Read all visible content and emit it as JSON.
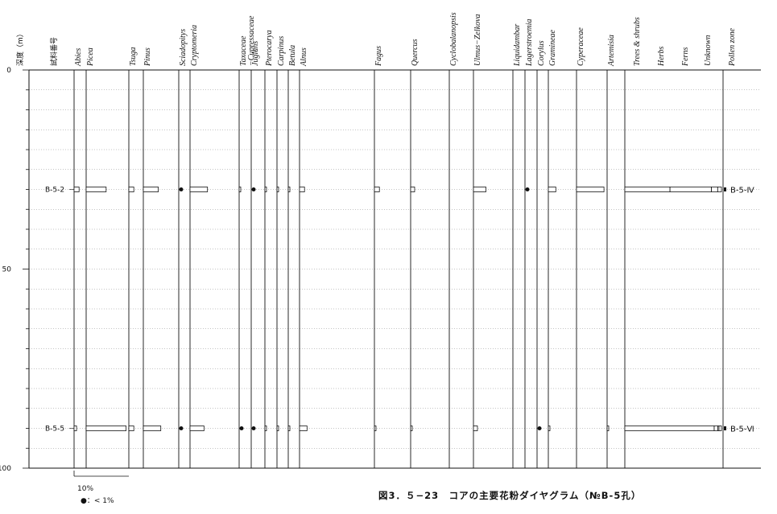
{
  "header": {
    "depth_label": "深度（m）",
    "sample_label": "試料番号"
  },
  "caption": "図3．５−23　コアの主要花粉ダイヤグラム（№B-5孔）",
  "legend": {
    "scale_label": "10%",
    "dot_label": "●：< 1%"
  },
  "chart_data": {
    "type": "bar",
    "title": "図3．５−23　コアの主要花粉ダイヤグラム（№B-5孔）",
    "ylabel": "深度（m）",
    "ylim": [
      0,
      100
    ],
    "y_ticks": [
      0,
      50,
      100
    ],
    "y_inverted": true,
    "grid": true,
    "depths": [
      30,
      90
    ],
    "samples": [
      "B-5-2",
      "B-5-5"
    ],
    "taxa": [
      {
        "name": "Abies",
        "values": [
          1,
          0.5
        ]
      },
      {
        "name": "Picea",
        "values": [
          4,
          8
        ]
      },
      {
        "name": "Tsuga",
        "values": [
          1,
          1
        ]
      },
      {
        "name": "Pinus",
        "values": [
          3,
          3.5
        ]
      },
      {
        "name": "Sciadopitys",
        "values": [
          0.5,
          0.5
        ]
      },
      {
        "name": "Cryptomeria",
        "values": [
          3.5,
          2.8
        ]
      },
      {
        "name": "Taxaceae\n−Cupressaceae",
        "values": [
          0.3,
          0.5
        ]
      },
      {
        "name": "Juglans",
        "values": [
          0.3,
          0.5
        ]
      },
      {
        "name": "Pterocarya",
        "values": [
          0.3,
          0.3
        ]
      },
      {
        "name": "Carpinus",
        "values": [
          0.3,
          0.3
        ]
      },
      {
        "name": "Betula",
        "values": [
          0.3,
          0.3
        ]
      },
      {
        "name": "Alnus",
        "values": [
          1,
          1.5
        ]
      },
      {
        "name": "Fagus",
        "values": [
          1,
          0.2
        ]
      },
      {
        "name": "Quercus",
        "values": [
          0.8,
          0.3
        ]
      },
      {
        "name": "Cyclobalanopsis",
        "values": [
          0,
          0
        ]
      },
      {
        "name": "Ulmus−Zelkova",
        "values": [
          2.5,
          0.8
        ]
      },
      {
        "name": "Liquidambar",
        "values": [
          0,
          0
        ]
      },
      {
        "name": "Lagerstroemia",
        "values": [
          0.5,
          0
        ]
      },
      {
        "name": "Corylus",
        "values": [
          0,
          0.5
        ]
      },
      {
        "name": "Gramineae",
        "values": [
          1.5,
          0.3
        ]
      },
      {
        "name": "Cyperaceae",
        "values": [
          5.5,
          0
        ]
      },
      {
        "name": "Artemisia",
        "values": [
          0,
          0.3
        ]
      }
    ],
    "summary": {
      "categories": [
        "Trees & shrubs",
        "Herbs",
        "Ferns",
        "Unknown"
      ],
      "values": [
        [
          36,
          33,
          5,
          3
        ],
        [
          74,
          3,
          1,
          2
        ]
      ]
    },
    "pollen_zone_label": "Pollen zone",
    "zones": [
      "B-5-Ⅳ",
      "B-5-Ⅵ"
    ]
  }
}
